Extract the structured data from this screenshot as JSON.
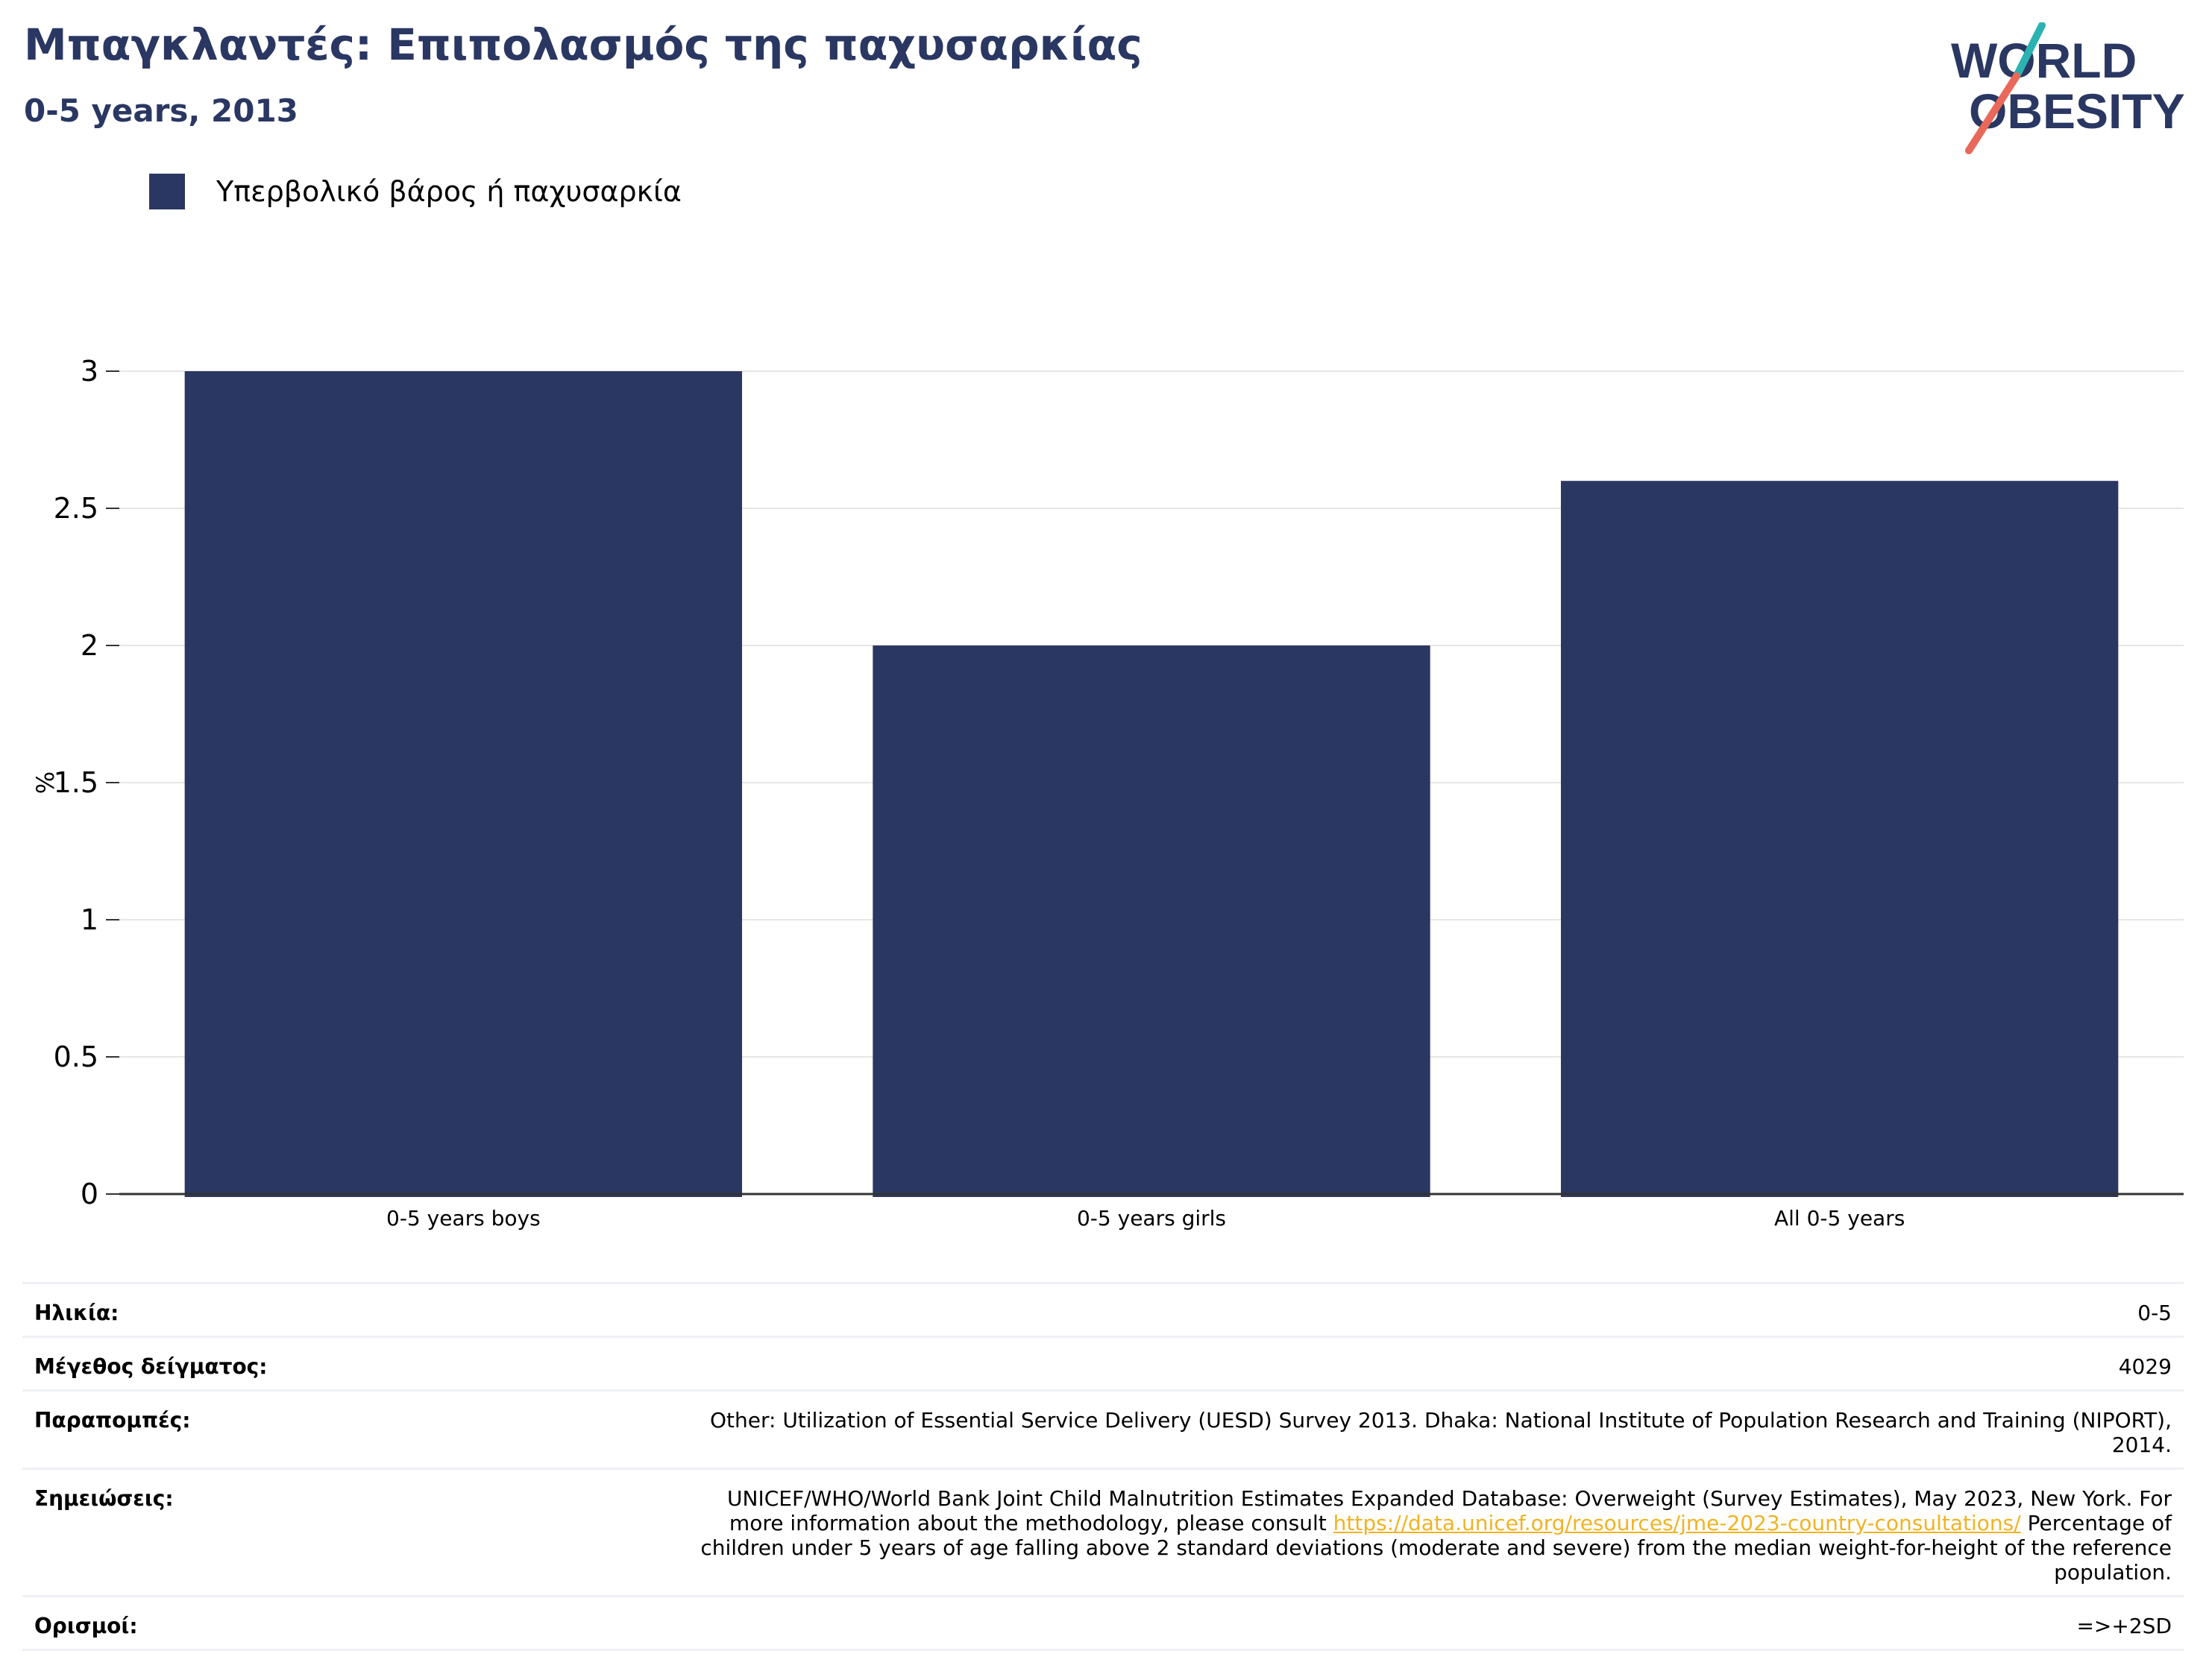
{
  "header": {
    "title": "Μπαγκλαντές: Επιπολασμός της παχυσαρκίας",
    "subtitle": "0-5 years, 2013"
  },
  "logo": {
    "line1": "WORLD",
    "line2": "OBESITY",
    "colors": {
      "text": "#2a3762",
      "slash_top": "#2bb3b1",
      "slash_bottom": "#e8695a"
    }
  },
  "chart_data": {
    "type": "bar",
    "categories": [
      "0-5 years boys",
      "0-5 years girls",
      "All 0-5 years"
    ],
    "series": [
      {
        "name": "Υπερβολικό βάρος ή παχυσαρκία",
        "values": [
          3.0,
          2.0,
          2.6
        ],
        "color": "#2a3762"
      }
    ],
    "ylabel": "%",
    "ylim": [
      0,
      3
    ],
    "yticks": [
      0,
      0.5,
      1,
      1.5,
      2,
      2.5,
      3
    ],
    "ytick_labels": [
      "0",
      "0.5",
      "1",
      "1.5",
      "2",
      "2.5",
      "3"
    ],
    "grid": true,
    "legend": "top-left"
  },
  "info": {
    "age": {
      "label": "Ηλικία:",
      "value": "0-5"
    },
    "sample": {
      "label": "Μέγεθος δείγματος:",
      "value": "4029"
    },
    "references": {
      "label": "Παραπομπές:",
      "line1": "Other: Utilization of Essential Service Delivery (UESD) Survey 2013. Dhaka: National Institute of Population Research and Training (NIPORT),",
      "line2": "2014."
    },
    "notes": {
      "label": "Σημειώσεις:",
      "line1": "UNICEF/WHO/World Bank Joint Child Malnutrition Estimates Expanded Database: Overweight (Survey Estimates), May 2023, New York. For",
      "line2_before": "more information about the methodology, please consult",
      "link": "https://data.unicef.org/resources/jme-2023-country-consultations/",
      "line2_after": "Percentage of",
      "line3": "children under 5 years of age falling above 2 standard deviations (moderate and severe) from the median weight-for-height of the reference",
      "line4": "population."
    },
    "definitions": {
      "label": "Ορισμοί:",
      "value": "=>+2SD"
    }
  }
}
